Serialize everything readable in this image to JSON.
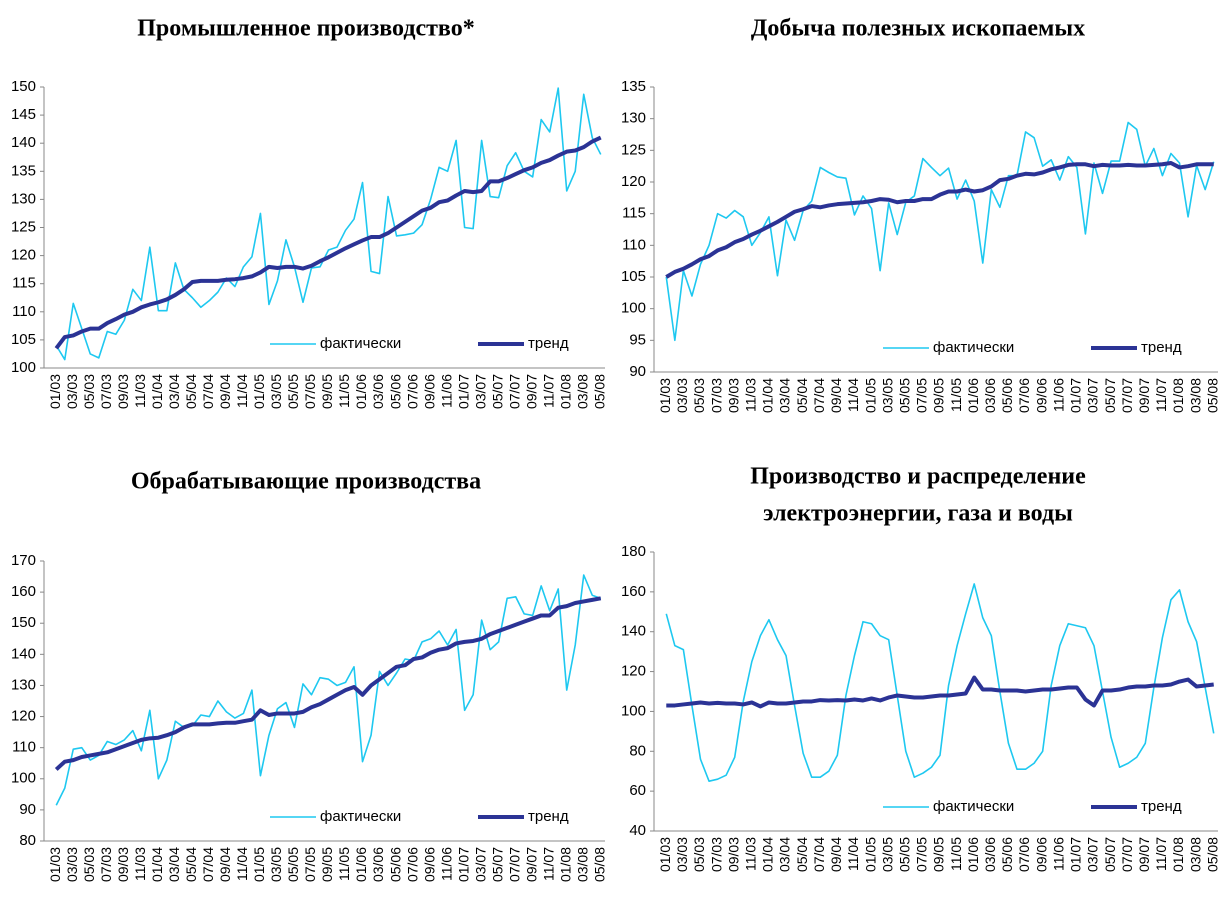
{
  "chart_data": [
    {
      "type": "line",
      "title": "Промышленное производство*",
      "legend": "lower right",
      "categories": [
        "01/03",
        null,
        "03/03",
        null,
        "05/03",
        null,
        "07/03",
        null,
        "09/03",
        null,
        "11/03",
        null,
        "01/04",
        null,
        "03/04",
        null,
        "05/04",
        null,
        "07/04",
        null,
        "09/04",
        null,
        "11/04",
        null,
        "01/05",
        null,
        "03/05",
        null,
        "05/05",
        null,
        "07/05",
        null,
        "09/05",
        null,
        "11/05",
        null,
        "01/06",
        null,
        "03/06",
        null,
        "05/06",
        null,
        "07/06",
        null,
        "09/06",
        null,
        "11/06",
        null,
        "01/07",
        null,
        "03/07",
        null,
        "05/07",
        null,
        "07/07",
        null,
        "09/07",
        null,
        "11/07",
        null,
        "01/08",
        null,
        "03/08",
        null,
        "05/08"
      ],
      "ylim": [
        100,
        150
      ],
      "yticks": [
        100,
        105,
        110,
        115,
        120,
        125,
        130,
        135,
        140,
        145,
        150
      ],
      "series": [
        {
          "name": "фактически",
          "color": "#1ec8f0",
          "values": [
            104,
            101.5,
            111.5,
            107,
            102.5,
            101.8,
            106.5,
            106,
            108.5,
            114,
            112,
            121.5,
            110.2,
            110.2,
            118.7,
            114,
            112.5,
            110.8,
            112,
            113.5,
            116,
            114.5,
            118,
            119.8,
            127.5,
            111.3,
            115.5,
            122.8,
            118,
            111.7,
            117.8,
            118,
            121,
            121.5,
            124.5,
            126.5,
            133,
            117.2,
            116.8,
            130.5,
            123.5,
            123.7,
            124,
            125.5,
            130,
            135.7,
            135,
            140.5,
            125,
            124.8,
            140.5,
            130.5,
            130.3,
            136,
            138.3,
            135,
            134,
            144.2,
            142,
            149.8,
            131.5,
            135,
            148.7,
            141,
            138
          ]
        },
        {
          "name": "тренд",
          "color": "#2b3395",
          "values": [
            103.5,
            105.5,
            105.8,
            106.5,
            107,
            107,
            108,
            108.7,
            109.5,
            110,
            110.8,
            111.3,
            111.7,
            112.2,
            113,
            114,
            115.3,
            115.5,
            115.5,
            115.5,
            115.7,
            115.8,
            116,
            116.3,
            117,
            118,
            117.8,
            118,
            118,
            117.7,
            118.2,
            119,
            119.7,
            120.5,
            121.3,
            122,
            122.7,
            123.3,
            123.3,
            124,
            125,
            126,
            127,
            128,
            128.5,
            129.5,
            129.8,
            130.7,
            131.5,
            131.3,
            131.5,
            133.2,
            133.2,
            133.8,
            134.5,
            135.2,
            135.7,
            136.5,
            137,
            137.8,
            138.5,
            138.7,
            139.3,
            140.3,
            141
          ]
        }
      ]
    },
    {
      "type": "line",
      "title": "Добыча полезных ископаемых",
      "legend": "lower right",
      "categories": [
        "01/03",
        null,
        "03/03",
        null,
        "05/03",
        null,
        "07/03",
        null,
        "09/03",
        null,
        "11/03",
        null,
        "01/04",
        null,
        "03/04",
        null,
        "05/04",
        null,
        "07/04",
        null,
        "09/04",
        null,
        "11/04",
        null,
        "01/05",
        null,
        "03/05",
        null,
        "05/05",
        null,
        "07/05",
        null,
        "09/05",
        null,
        "11/05",
        null,
        "01/06",
        null,
        "03/06",
        null,
        "05/06",
        null,
        "07/06",
        null,
        "09/06",
        null,
        "11/06",
        null,
        "01/07",
        null,
        "03/07",
        null,
        "05/07",
        null,
        "07/07",
        null,
        "09/07",
        null,
        "11/07",
        null,
        "01/08",
        null,
        "03/08",
        null,
        "05/08"
      ],
      "ylim": [
        90,
        135
      ],
      "yticks": [
        90,
        95,
        100,
        105,
        110,
        115,
        120,
        125,
        130,
        135
      ],
      "series": [
        {
          "name": "фактически",
          "color": "#1ec8f0",
          "values": [
            105,
            95,
            106,
            102,
            107,
            110,
            115,
            114.3,
            115.5,
            114.5,
            110,
            112,
            114.5,
            105.2,
            114,
            110.8,
            115.5,
            117,
            122.3,
            121.5,
            120.8,
            120.6,
            114.8,
            117.8,
            115.8,
            106,
            116.7,
            111.7,
            116.8,
            117.8,
            123.7,
            122.3,
            121,
            122.2,
            117.3,
            120.3,
            117,
            107.2,
            118.8,
            116,
            121,
            121,
            127.9,
            127,
            122.5,
            123.5,
            120.3,
            124,
            122.3,
            111.8,
            123,
            118.2,
            123.3,
            123.3,
            129.4,
            128.3,
            122.5,
            125.3,
            121,
            124.5,
            123,
            114.5,
            122.6,
            118.8,
            123.2
          ]
        },
        {
          "name": "тренд",
          "color": "#2b3395",
          "values": [
            105,
            105.8,
            106.3,
            107,
            107.8,
            108.3,
            109.2,
            109.7,
            110.5,
            111,
            111.7,
            112.3,
            113,
            113.7,
            114.5,
            115.3,
            115.7,
            116.2,
            116,
            116.3,
            116.5,
            116.6,
            116.7,
            116.8,
            117,
            117.3,
            117.2,
            116.8,
            117,
            117,
            117.3,
            117.3,
            118,
            118.5,
            118.5,
            118.8,
            118.5,
            118.7,
            119.3,
            120.3,
            120.5,
            121,
            121.3,
            121.2,
            121.5,
            122,
            122.3,
            122.7,
            122.8,
            122.8,
            122.5,
            122.7,
            122.6,
            122.6,
            122.7,
            122.6,
            122.6,
            122.7,
            122.8,
            123,
            122.3,
            122.5,
            122.8,
            122.8,
            122.8
          ]
        }
      ]
    },
    {
      "type": "line",
      "title": "Обрабатывающие производства",
      "legend": "lower right",
      "categories": [
        "01/03",
        null,
        "03/03",
        null,
        "05/03",
        null,
        "07/03",
        null,
        "09/03",
        null,
        "11/03",
        null,
        "01/04",
        null,
        "03/04",
        null,
        "05/04",
        null,
        "07/04",
        null,
        "09/04",
        null,
        "11/04",
        null,
        "01/05",
        null,
        "03/05",
        null,
        "05/05",
        null,
        "07/05",
        null,
        "09/05",
        null,
        "11/05",
        null,
        "01/06",
        null,
        "03/06",
        null,
        "05/06",
        null,
        "07/06",
        null,
        "09/06",
        null,
        "11/06",
        null,
        "01/07",
        null,
        "03/07",
        null,
        "05/07",
        null,
        "07/07",
        null,
        "09/07",
        null,
        "11/07",
        null,
        "01/08",
        null,
        "03/08",
        null,
        "05/08"
      ],
      "ylim": [
        80,
        170
      ],
      "yticks": [
        80,
        90,
        100,
        110,
        120,
        130,
        140,
        150,
        160,
        170
      ],
      "series": [
        {
          "name": "фактически",
          "color": "#1ec8f0",
          "values": [
            91.5,
            97,
            109.5,
            110,
            106,
            107.5,
            112,
            111,
            112.5,
            115.5,
            109,
            122,
            100,
            106,
            118.5,
            116.5,
            117,
            120.5,
            120,
            125,
            121.5,
            119.5,
            121,
            128.5,
            101,
            114,
            122.5,
            124.5,
            116.5,
            130.5,
            127,
            132.5,
            132,
            130,
            131,
            136,
            105.5,
            114,
            134.5,
            130,
            134,
            138.5,
            138,
            144,
            145,
            147.5,
            143,
            148,
            122,
            127,
            151,
            141.5,
            144,
            158,
            158.5,
            153,
            152.5,
            162,
            154,
            161,
            128.5,
            143,
            165.5,
            159,
            158
          ]
        },
        {
          "name": "тренд",
          "color": "#2b3395",
          "values": [
            103,
            105.5,
            106,
            107,
            107.5,
            108,
            108.5,
            109.5,
            110.5,
            111.5,
            112.5,
            113,
            113.2,
            114,
            115,
            116.5,
            117.5,
            117.5,
            117.5,
            117.8,
            118,
            118,
            118.5,
            119,
            122,
            120.5,
            121,
            121,
            121,
            121.5,
            123,
            124,
            125.5,
            127,
            128.5,
            129.5,
            127,
            130,
            132,
            134,
            136,
            136.5,
            138.5,
            139,
            140.5,
            141.5,
            142,
            143.5,
            144,
            144.3,
            145,
            146.5,
            147.5,
            148.5,
            149.5,
            150.5,
            151.5,
            152.5,
            152.5,
            155,
            155.5,
            156.5,
            157,
            157.5,
            158
          ]
        }
      ]
    },
    {
      "type": "line",
      "title": [
        "Производство и распределение",
        "электроэнергии, газа и воды"
      ],
      "legend": "lower right",
      "categories": [
        "01/03",
        null,
        "03/03",
        null,
        "05/03",
        null,
        "07/03",
        null,
        "09/03",
        null,
        "11/03",
        null,
        "01/04",
        null,
        "03/04",
        null,
        "05/04",
        null,
        "07/04",
        null,
        "09/04",
        null,
        "11/04",
        null,
        "01/05",
        null,
        "03/05",
        null,
        "05/05",
        null,
        "07/05",
        null,
        "09/05",
        null,
        "11/05",
        null,
        "01/06",
        null,
        "03/06",
        null,
        "05/06",
        null,
        "07/06",
        null,
        "09/06",
        null,
        "11/06",
        null,
        "01/07",
        null,
        "03/07",
        null,
        "05/07",
        null,
        "07/07",
        null,
        "09/07",
        null,
        "11/07",
        null,
        "01/08",
        null,
        "03/08",
        null,
        "05/08"
      ],
      "ylim": [
        40,
        180
      ],
      "yticks": [
        40,
        60,
        80,
        100,
        120,
        140,
        160,
        180
      ],
      "series": [
        {
          "name": "фактически",
          "color": "#1ec8f0",
          "values": [
            149,
            133,
            131,
            103,
            76,
            65,
            66,
            68,
            77,
            105,
            125,
            138,
            146,
            136,
            128,
            103,
            79,
            67,
            67,
            70,
            78,
            108,
            128,
            145,
            144,
            138,
            136,
            108,
            80,
            67,
            69,
            72,
            78,
            113,
            133,
            149,
            164,
            147,
            138,
            110,
            84,
            71,
            71,
            74,
            80,
            113,
            133,
            144,
            143,
            142,
            133,
            110,
            87,
            72,
            74,
            77,
            84,
            112,
            137,
            156,
            161,
            145,
            135,
            112,
            89
          ]
        },
        {
          "name": "тренд",
          "color": "#2b3395",
          "values": [
            103,
            103,
            103.5,
            104,
            104.5,
            104,
            104.3,
            104,
            104,
            103.5,
            104.5,
            102.5,
            104.5,
            104,
            104,
            104.5,
            105,
            105,
            105.7,
            105.5,
            105.7,
            105.5,
            106,
            105.5,
            106.5,
            105.5,
            107,
            108,
            107.5,
            107,
            107,
            107.5,
            108,
            108,
            108.5,
            109,
            117,
            111,
            111,
            110.5,
            110.5,
            110.5,
            110,
            110.5,
            111,
            111,
            111.5,
            112,
            112,
            106,
            103,
            110.5,
            110.5,
            111,
            112,
            112.5,
            112.5,
            113,
            113,
            113.5,
            115,
            116,
            112.5,
            113,
            113.5
          ]
        }
      ]
    }
  ]
}
